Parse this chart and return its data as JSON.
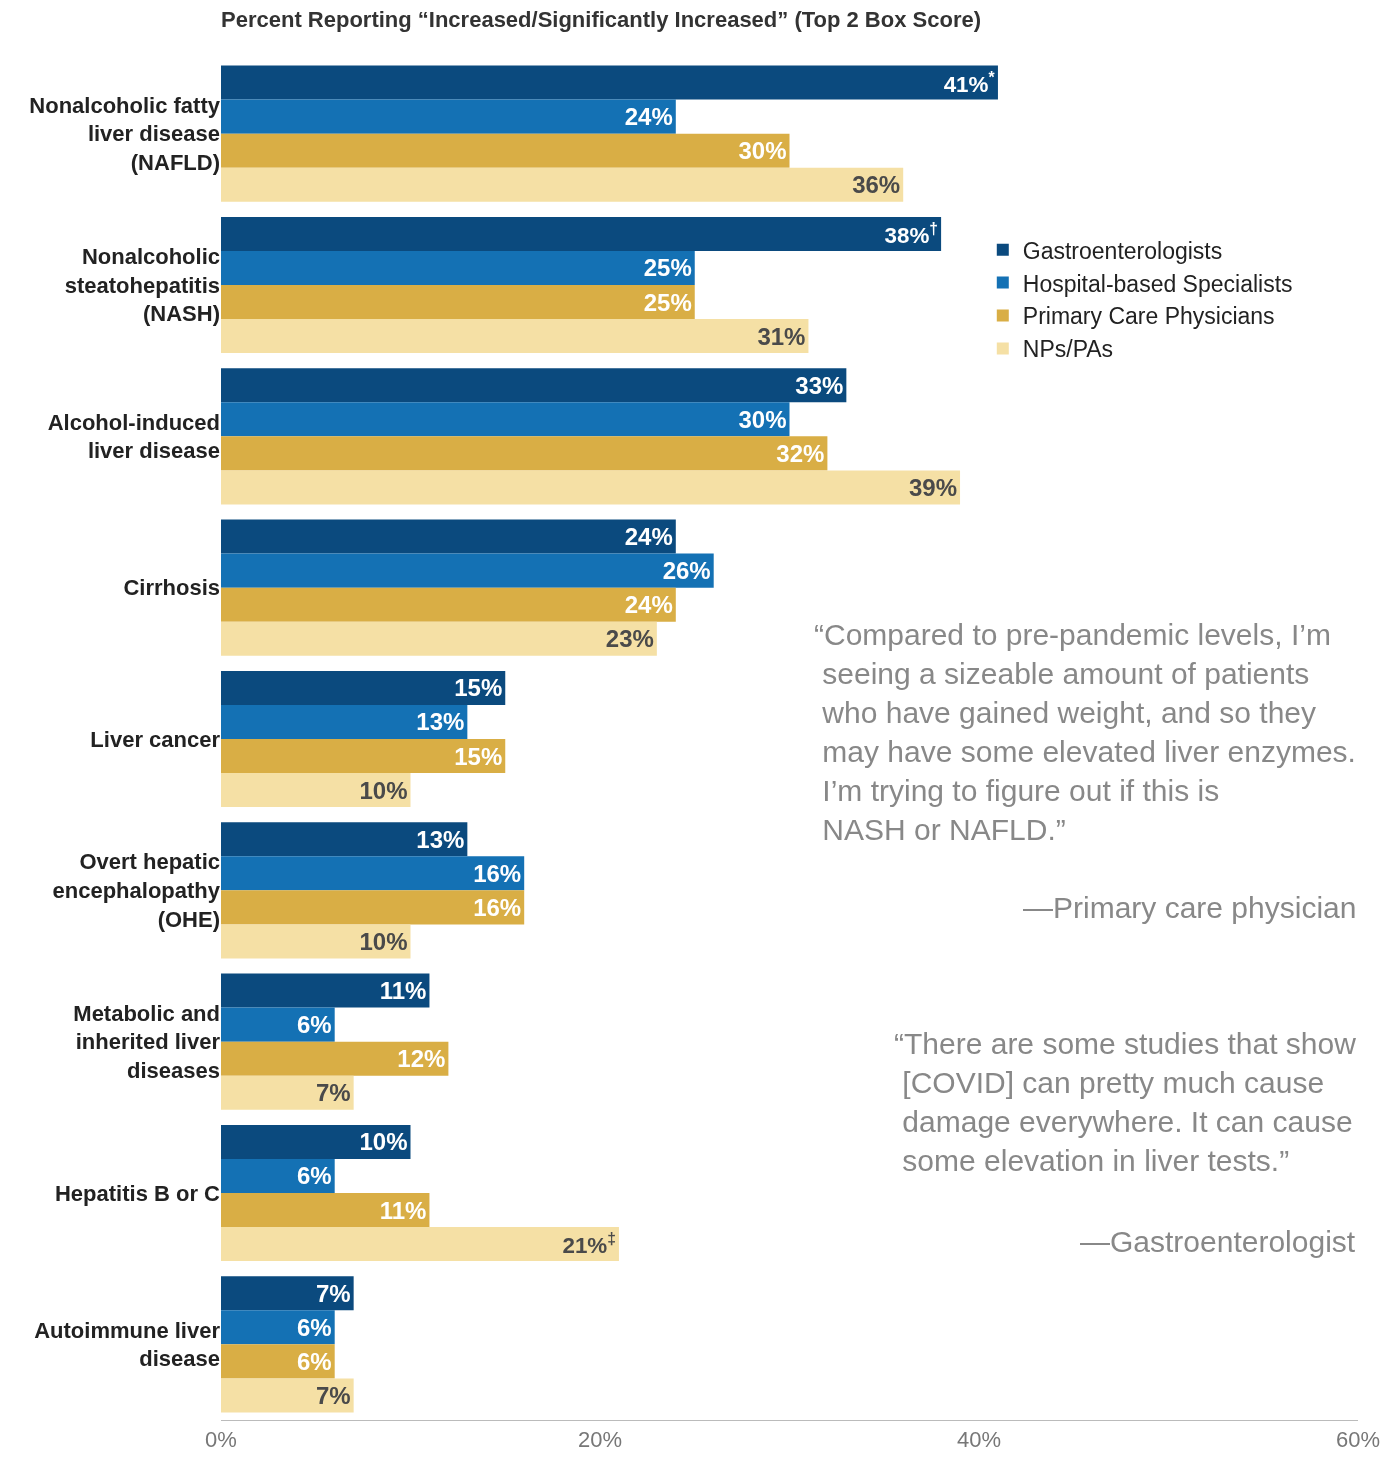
{
  "chart_data": {
    "type": "bar",
    "orientation": "horizontal",
    "title": "Percent Reporting “Increased/Significantly Increased” (Top 2 Box Score)",
    "categories": [
      "Nonalcoholic fatty liver disease (NAFLD)",
      "Nonalcoholic steatohepatitis (NASH)",
      "Alcohol-induced liver disease",
      "Cirrhosis",
      "Liver cancer",
      "Overt hepatic encephalopathy (OHE)",
      "Metabolic and inherited liver diseases",
      "Hepatitis B or C",
      "Autoimmune liver disease"
    ],
    "series": [
      {
        "name": "Gastroenterologists",
        "color": "#0b4a7e",
        "values": [
          41,
          38,
          33,
          24,
          15,
          13,
          11,
          10,
          7
        ],
        "value_labels": [
          "41%$^{*}$",
          "38%$^{†}$",
          "33%",
          "24%",
          "15%",
          "13%",
          "11%",
          "10%",
          "7%"
        ]
      },
      {
        "name": "Hospital-based Specialists",
        "color": "#1471b4",
        "values": [
          24,
          25,
          30,
          26,
          13,
          16,
          6,
          6,
          6
        ],
        "value_labels": [
          "24%",
          "25%",
          "30%",
          "26%",
          "13%",
          "16%",
          "6%",
          "6%",
          "6%"
        ]
      },
      {
        "name": "Primary Care Physicians",
        "color": "#d9ae45",
        "values": [
          30,
          25,
          32,
          24,
          15,
          16,
          12,
          11,
          6
        ],
        "value_labels": [
          "30%",
          "25%",
          "32%",
          "24%",
          "15%",
          "16%",
          "12%",
          "11%",
          "6%"
        ]
      },
      {
        "name": "NPs/PAs",
        "color": "#f5e0a5",
        "values": [
          36,
          31,
          39,
          23,
          10,
          10,
          7,
          21,
          7
        ],
        "value_labels": [
          "36%",
          "31%",
          "39%",
          "23%",
          "10%",
          "10%",
          "7%",
          "21%$^{‡}$",
          "7%"
        ]
      }
    ],
    "xlim": [
      0,
      60
    ],
    "xticks": [
      {
        "value": 0,
        "label": "0%"
      },
      {
        "value": 20,
        "label": "20%"
      },
      {
        "value": 40,
        "label": "40%"
      },
      {
        "value": 60,
        "label": "60%"
      }
    ],
    "legend": "right",
    "annotations": [
      "“Compared to pre-pandemic levels, I’m seeing a sizeable amount of patients who have gained weight, and so they may have some elevated liver enzymes. I’m trying to figure out if this is NASH or NAFLD.”",
      "—Primary care physician",
      "“There are some studies that show [COVID] can pretty much cause damage everywhere. It can cause some elevation in liver tests.”",
      "—Gastroenterologist"
    ]
  }
}
